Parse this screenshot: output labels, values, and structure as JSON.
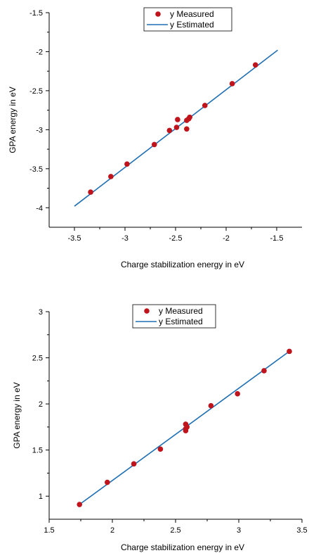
{
  "chart_data": [
    {
      "type": "scatter",
      "xlabel": "Charge stabilization energy in eV",
      "ylabel": "GPA energy in eV",
      "xlim": [
        -3.75,
        -1.25
      ],
      "ylim": [
        -4.25,
        -1.5
      ],
      "xticks": [
        "-3.5",
        "-3",
        "-2.5",
        "-2",
        "-1.5"
      ],
      "xtick_values": [
        -3.5,
        -3,
        -2.5,
        -2,
        -1.5
      ],
      "yticks": [
        "-4",
        "-3.5",
        "-3",
        "-2.5",
        "-2",
        "-1.5"
      ],
      "ytick_values": [
        -4,
        -3.5,
        -3,
        -2.5,
        -2,
        -1.5
      ],
      "grid": false,
      "legend_position": "top-center",
      "colors": {
        "measured": "#c0141c",
        "estimated": "#1f6fb2"
      },
      "series": [
        {
          "name": "y Measured",
          "kind": "points",
          "x": [
            -3.34,
            -3.14,
            -2.98,
            -2.71,
            -2.56,
            -2.49,
            -2.48,
            -2.39,
            -2.39,
            -2.37,
            -2.36,
            -2.21,
            -1.94,
            -1.71
          ],
          "y": [
            -3.8,
            -3.6,
            -3.44,
            -3.19,
            -3.01,
            -2.97,
            -2.87,
            -2.88,
            -2.99,
            -2.86,
            -2.84,
            -2.69,
            -2.41,
            -2.17
          ]
        },
        {
          "name": "y Estimated",
          "kind": "line",
          "x": [
            -3.5,
            -1.49
          ],
          "y": [
            -3.98,
            -1.98
          ]
        }
      ]
    },
    {
      "type": "scatter",
      "xlabel": "Charge stabilization energy in eV",
      "ylabel": "GPA energy in eV",
      "xlim": [
        1.5,
        3.5
      ],
      "ylim": [
        0.75,
        3.0
      ],
      "xticks": [
        "1.5",
        "2",
        "2.5",
        "3",
        "3.5"
      ],
      "xtick_values": [
        1.5,
        2,
        2.5,
        3,
        3.5
      ],
      "yticks": [
        "1",
        "1.5",
        "2",
        "2.5",
        "3"
      ],
      "ytick_values": [
        1,
        1.5,
        2,
        2.5,
        3
      ],
      "grid": false,
      "legend_position": "top-center",
      "colors": {
        "measured": "#c0141c",
        "estimated": "#1f6fb2"
      },
      "series": [
        {
          "name": "y Measured",
          "kind": "points",
          "x": [
            1.74,
            1.96,
            2.17,
            2.38,
            2.58,
            2.58,
            2.58,
            2.59,
            2.78,
            2.99,
            3.2,
            3.4
          ],
          "y": [
            0.91,
            1.15,
            1.35,
            1.51,
            1.71,
            1.73,
            1.78,
            1.75,
            1.98,
            2.11,
            2.36,
            2.57
          ]
        },
        {
          "name": "y Estimated",
          "kind": "line",
          "x": [
            1.74,
            3.4
          ],
          "y": [
            0.91,
            2.57
          ]
        }
      ]
    }
  ]
}
